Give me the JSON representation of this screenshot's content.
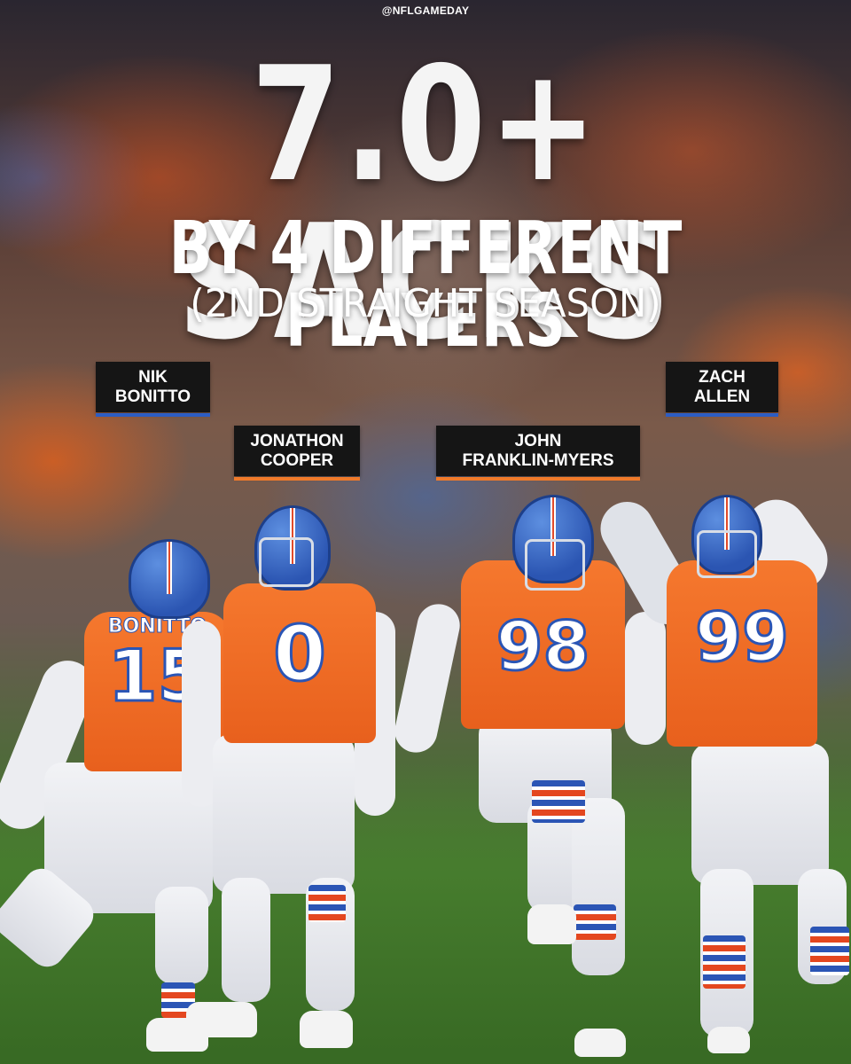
{
  "handle": "@NFLGAMEDAY",
  "headline": "7.0+ SACKS",
  "subhead": "BY 4 DIFFERENT PLAYERS",
  "subline": "(2ND STRAIGHT SEASON)",
  "players": [
    {
      "first": "NIK",
      "last": "BONITTO",
      "number": "15",
      "bar_color": "#2c5dc4"
    },
    {
      "first": "JONATHON",
      "last": "COOPER",
      "number": "0",
      "bar_color": "#f07a2a"
    },
    {
      "first": "JOHN",
      "last": "FRANKLIN-MYERS",
      "number": "98",
      "bar_color": "#f07a2a"
    },
    {
      "first": "ZACH",
      "last": "ALLEN",
      "number": "99",
      "bar_color": "#2c5dc4"
    }
  ],
  "jersey_nameplate": "BONITTO",
  "colors": {
    "orange": "#f0702a",
    "blue": "#2b55b5",
    "tag_bg": "#151515"
  }
}
